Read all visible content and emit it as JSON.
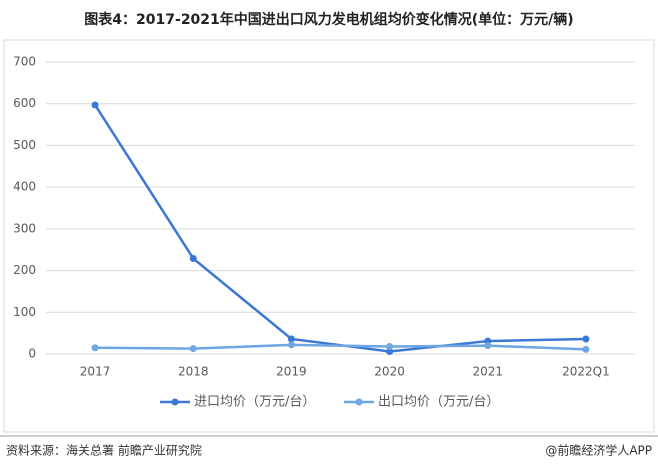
{
  "chart_data": {
    "type": "line",
    "title": "图表4：2017-2021年中国进出口风力发电机组均价变化情况(单位：万元/辆)",
    "categories": [
      "2017",
      "2018",
      "2019",
      "2020",
      "2021",
      "2022Q1"
    ],
    "series": [
      {
        "name": "进口均价（万元/台）",
        "color": "#3b78d4",
        "values": [
          597,
          229,
          36,
          6,
          31,
          36
        ]
      },
      {
        "name": "出口均价（万元/台）",
        "color": "#6fa6e4",
        "values": [
          15,
          13,
          22,
          18,
          20,
          11
        ]
      }
    ],
    "ylim": [
      0,
      700
    ],
    "yticks": [
      0,
      100,
      200,
      300,
      400,
      500,
      600,
      700
    ],
    "grid": true,
    "legend": "bottom",
    "source": "资料来源：海关总署 前瞻产业研究院",
    "credit": "@前瞻经济学人APP"
  }
}
